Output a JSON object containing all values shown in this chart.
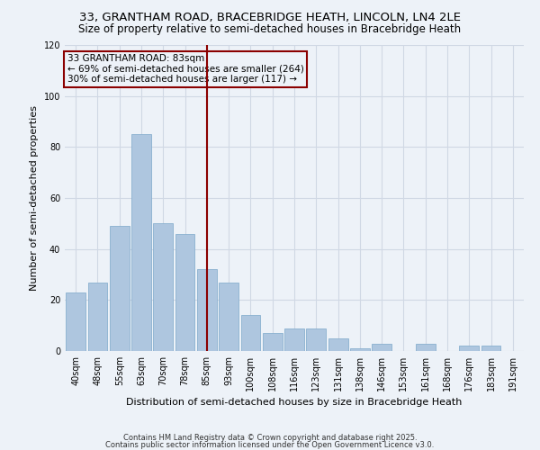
{
  "title1": "33, GRANTHAM ROAD, BRACEBRIDGE HEATH, LINCOLN, LN4 2LE",
  "title2": "Size of property relative to semi-detached houses in Bracebridge Heath",
  "xlabel": "Distribution of semi-detached houses by size in Bracebridge Heath",
  "ylabel": "Number of semi-detached properties",
  "categories": [
    "40sqm",
    "48sqm",
    "55sqm",
    "63sqm",
    "70sqm",
    "78sqm",
    "85sqm",
    "93sqm",
    "100sqm",
    "108sqm",
    "116sqm",
    "123sqm",
    "131sqm",
    "138sqm",
    "146sqm",
    "153sqm",
    "161sqm",
    "168sqm",
    "176sqm",
    "183sqm",
    "191sqm"
  ],
  "values": [
    23,
    27,
    49,
    85,
    50,
    46,
    32,
    27,
    14,
    7,
    9,
    9,
    5,
    1,
    3,
    0,
    3,
    0,
    2,
    2,
    0
  ],
  "bar_color": "#aec6df",
  "bar_edge_color": "#8ab0cf",
  "vline_x": 6,
  "vline_color": "#8b0000",
  "annotation_title": "33 GRANTHAM ROAD: 83sqm",
  "annotation_line1": "← 69% of semi-detached houses are smaller (264)",
  "annotation_line2": "30% of semi-detached houses are larger (117) →",
  "annotation_box_color": "#8b0000",
  "ylim": [
    0,
    120
  ],
  "yticks": [
    0,
    20,
    40,
    60,
    80,
    100,
    120
  ],
  "grid_color": "#d0d8e4",
  "background_color": "#edf2f8",
  "footer_line1": "Contains HM Land Registry data © Crown copyright and database right 2025.",
  "footer_line2": "Contains public sector information licensed under the Open Government Licence v3.0.",
  "title_fontsize": 9.5,
  "subtitle_fontsize": 8.5,
  "xlabel_fontsize": 8,
  "ylabel_fontsize": 8,
  "annot_fontsize": 7.5,
  "tick_fontsize": 7
}
